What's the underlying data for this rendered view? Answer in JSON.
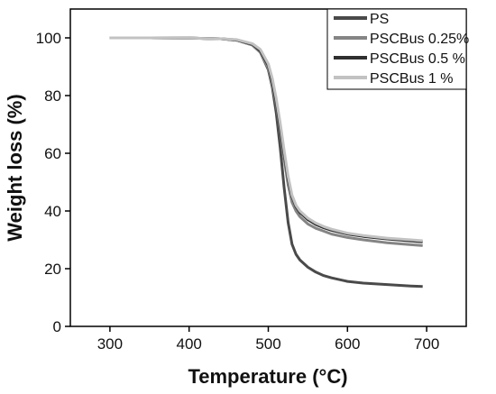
{
  "chart_data": {
    "type": "line",
    "title": "",
    "xlabel": "Temperature (°C)",
    "ylabel": "Weight loss (%)",
    "xlim": [
      250,
      750
    ],
    "ylim": [
      0,
      110
    ],
    "xticks": [
      300,
      400,
      500,
      600,
      700
    ],
    "yticks": [
      0,
      20,
      40,
      60,
      80,
      100
    ],
    "legend_position": "top-right",
    "grid": false,
    "series": [
      {
        "name": "PS",
        "color": "#4a4a4a",
        "x": [
          300,
          350,
          400,
          440,
          460,
          480,
          490,
          500,
          505,
          510,
          515,
          520,
          525,
          530,
          535,
          540,
          550,
          560,
          570,
          580,
          600,
          620,
          650,
          680,
          695
        ],
        "y": [
          100,
          100,
          99.9,
          99.7,
          99.2,
          97.5,
          95,
          89,
          83,
          74,
          62,
          48,
          36,
          28.5,
          25,
          23,
          20.5,
          18.8,
          17.6,
          16.8,
          15.6,
          15,
          14.5,
          14,
          13.8
        ]
      },
      {
        "name": "PSCBus 0.25%",
        "color": "#858585",
        "x": [
          300,
          350,
          400,
          440,
          460,
          480,
          490,
          500,
          505,
          510,
          515,
          520,
          525,
          530,
          535,
          540,
          550,
          560,
          570,
          580,
          600,
          620,
          650,
          680,
          695
        ],
        "y": [
          100,
          100,
          99.9,
          99.7,
          99.2,
          97.5,
          95,
          89.5,
          84,
          77,
          68,
          58,
          49,
          43,
          40,
          38,
          35.5,
          34,
          33,
          32,
          30.8,
          30,
          29,
          28.3,
          28
        ]
      },
      {
        "name": "PSCBus 0.5 %",
        "color": "#2f2f2f",
        "x": [
          300,
          350,
          400,
          440,
          460,
          480,
          490,
          500,
          505,
          510,
          515,
          520,
          525,
          530,
          535,
          540,
          550,
          560,
          570,
          580,
          600,
          620,
          650,
          680,
          695
        ],
        "y": [
          100,
          100,
          99.9,
          99.7,
          99.3,
          97.8,
          95.5,
          90.5,
          85,
          78,
          69,
          60,
          51,
          45,
          41.5,
          39.5,
          37,
          35.3,
          34.2,
          33.3,
          32,
          31.2,
          30.3,
          29.6,
          29.3
        ]
      },
      {
        "name": "PSCBus 1 %",
        "color": "#c2c2c2",
        "x": [
          300,
          350,
          400,
          440,
          460,
          480,
          490,
          500,
          505,
          510,
          515,
          520,
          525,
          530,
          535,
          540,
          550,
          560,
          570,
          580,
          600,
          620,
          650,
          680,
          695
        ],
        "y": [
          100,
          100,
          99.9,
          99.7,
          99.4,
          98,
          96,
          91,
          86,
          79,
          70.5,
          61,
          52,
          45.5,
          42,
          40,
          37.5,
          35.8,
          34.6,
          33.7,
          32.3,
          31.5,
          30.6,
          30,
          29.7
        ]
      }
    ]
  }
}
